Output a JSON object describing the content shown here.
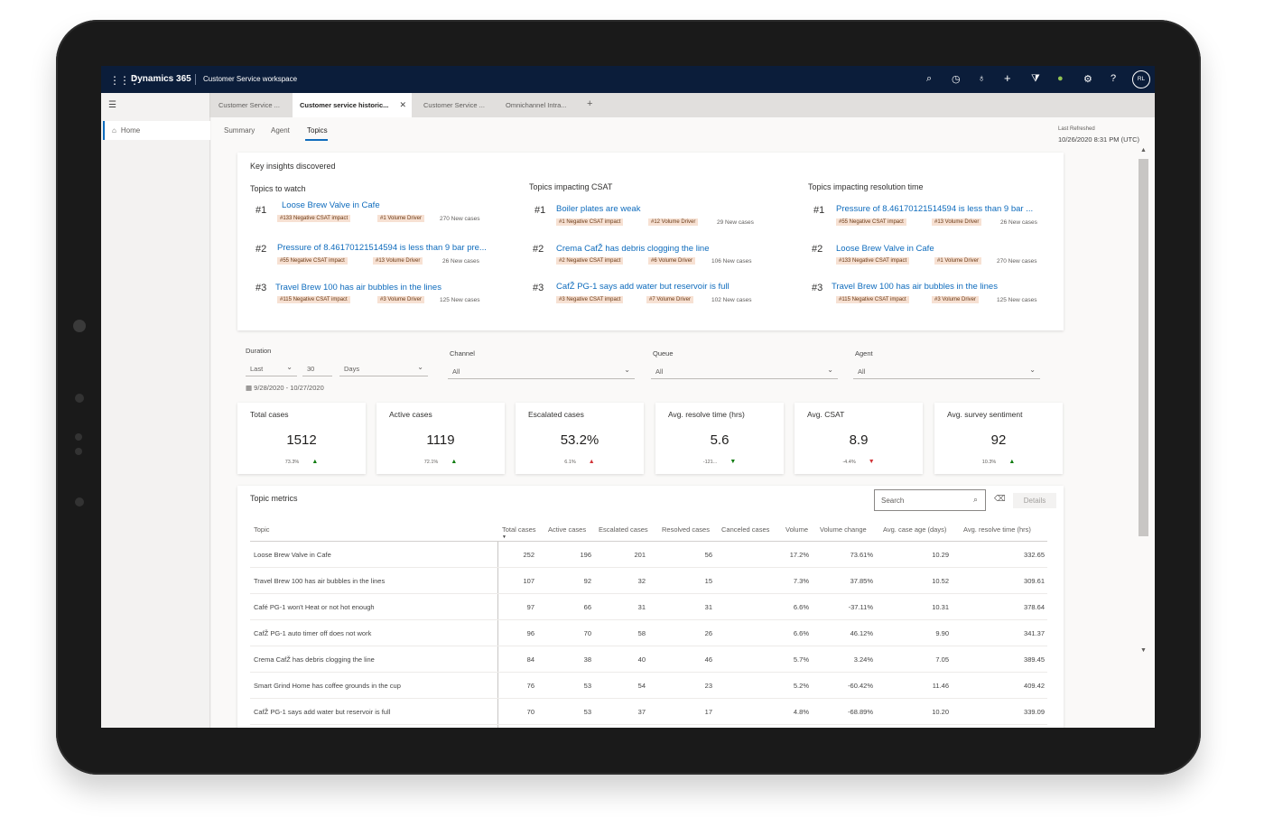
{
  "topbar": {
    "brand": "Dynamics 365",
    "workspace": "Customer Service workspace",
    "avatar_initials": "RL",
    "icons": [
      "search-icon",
      "task-icon",
      "lightbulb-icon",
      "plus-icon",
      "filter-icon",
      "status-icon",
      "gear-icon",
      "help-icon"
    ]
  },
  "tabs": [
    {
      "label": "Customer Service ..."
    },
    {
      "label": "Customer service historic..."
    },
    {
      "label": "Customer Service ..."
    },
    {
      "label": "Omnichannel Intra..."
    }
  ],
  "sidebar": {
    "home": "Home"
  },
  "subtabs": [
    "Summary",
    "Agent",
    "Topics"
  ],
  "refresh": {
    "label": "Last Refreshed",
    "value": "10/26/2020 8:31 PM (UTC)"
  },
  "insights": {
    "title": "Key insights discovered",
    "columns": [
      {
        "title": "Topics to watch",
        "items": [
          {
            "rank": "#1",
            "topic": "Loose Brew Valve in Cafe",
            "csat": "#133 Negative CSAT impact",
            "volume": "#1 Volume Driver",
            "new": "270 New cases"
          },
          {
            "rank": "#2",
            "topic": "Pressure of 8.46170121514594 is less than 9 bar pre...",
            "csat": "#55 Negative CSAT impact",
            "volume": "#13 Volume Driver",
            "new": "26 New cases"
          },
          {
            "rank": "#3",
            "topic": "Travel Brew 100 has air bubbles in the lines",
            "csat": "#115 Negative CSAT impact",
            "volume": "#3 Volume Driver",
            "new": "125 New cases"
          }
        ]
      },
      {
        "title": "Topics impacting CSAT",
        "items": [
          {
            "rank": "#1",
            "topic": "Boiler plates are weak",
            "csat": "#1 Negative CSAT impact",
            "volume": "#12 Volume Driver",
            "new": "29 New cases"
          },
          {
            "rank": "#2",
            "topic": "Crema CafŽ has debris clogging the line",
            "csat": "#2 Negative CSAT impact",
            "volume": "#6 Volume Driver",
            "new": "106 New cases"
          },
          {
            "rank": "#3",
            "topic": "CafŽ PG-1 says add water but reservoir is full",
            "csat": "#3 Negative CSAT impact",
            "volume": "#7 Volume Driver",
            "new": "102 New cases"
          }
        ]
      },
      {
        "title": "Topics impacting resolution time",
        "items": [
          {
            "rank": "#1",
            "topic": "Pressure of 8.46170121514594 is less than 9 bar ...",
            "csat": "#55 Negative CSAT impact",
            "volume": "#13 Volume Driver",
            "new": "26 New cases"
          },
          {
            "rank": "#2",
            "topic": "Loose Brew Valve in Cafe",
            "csat": "#133 Negative CSAT impact",
            "volume": "#1 Volume Driver",
            "new": "270 New cases"
          },
          {
            "rank": "#3",
            "topic": "Travel Brew 100 has air bubbles in the lines",
            "csat": "#115 Negative CSAT impact",
            "volume": "#3 Volume Driver",
            "new": "125 New cases"
          }
        ]
      }
    ]
  },
  "filters": {
    "duration_label": "Duration",
    "duration_mode": "Last",
    "duration_value": "30",
    "duration_unit": "Days",
    "date_range": "9/28/2020 - 10/27/2020",
    "channel_label": "Channel",
    "channel_value": "All",
    "queue_label": "Queue",
    "queue_value": "All",
    "agent_label": "Agent",
    "agent_value": "All"
  },
  "kpis": [
    {
      "title": "Total cases",
      "value": "1512",
      "delta": "73.3%",
      "trend": "up"
    },
    {
      "title": "Active cases",
      "value": "1119",
      "delta": "72.1%",
      "trend": "up"
    },
    {
      "title": "Escalated cases",
      "value": "53.2%",
      "delta": "6.1%",
      "trend": "up-red"
    },
    {
      "title": "Avg. resolve time (hrs)",
      "value": "5.6",
      "delta": "-121...",
      "trend": "down-green"
    },
    {
      "title": "Avg. CSAT",
      "value": "8.9",
      "delta": "-4.4%",
      "trend": "down-red"
    },
    {
      "title": "Avg. survey sentiment",
      "value": "92",
      "delta": "10.3%",
      "trend": "up"
    }
  ],
  "metrics": {
    "title": "Topic metrics",
    "search_placeholder": "Search",
    "details_label": "Details",
    "headers": [
      "Topic",
      "Total cases",
      "Active cases",
      "Escalated cases",
      "Resolved cases",
      "Canceled cases",
      "Volume",
      "Volume change",
      "Avg. case age (days)",
      "Avg. resolve time (hrs)"
    ],
    "rows": [
      [
        "Loose Brew Valve in Cafe",
        "252",
        "196",
        "201",
        "56",
        "",
        "17.2%",
        "73.61%",
        "10.29",
        "332.65"
      ],
      [
        "Travel Brew 100 has air bubbles in the lines",
        "107",
        "92",
        "32",
        "15",
        "",
        "7.3%",
        "37.85%",
        "10.52",
        "309.61"
      ],
      [
        "Café PG-1 won't Heat or not hot enough",
        "97",
        "66",
        "31",
        "31",
        "",
        "6.6%",
        "-37.11%",
        "10.31",
        "378.64"
      ],
      [
        "CafŽ PG-1 auto timer off does not work",
        "96",
        "70",
        "58",
        "26",
        "",
        "6.6%",
        "46.12%",
        "9.90",
        "341.37"
      ],
      [
        "Crema CafŽ has debris clogging the line",
        "84",
        "38",
        "40",
        "46",
        "",
        "5.7%",
        "3.24%",
        "7.05",
        "389.45"
      ],
      [
        "Smart Grind Home has coffee grounds in the cup",
        "76",
        "53",
        "54",
        "23",
        "",
        "5.2%",
        "-60.42%",
        "11.46",
        "409.42"
      ],
      [
        "CafŽ PG-1 says add water but reservoir is full",
        "70",
        "53",
        "37",
        "17",
        "",
        "4.8%",
        "-68.89%",
        "10.20",
        "339.09"
      ]
    ]
  }
}
